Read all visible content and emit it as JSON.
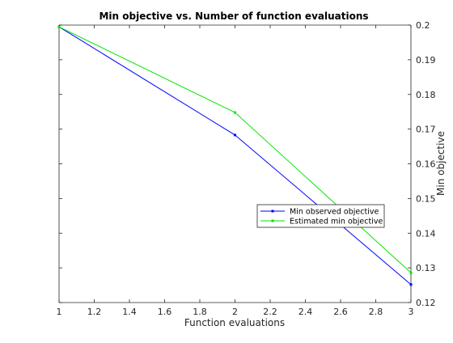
{
  "chart_data": {
    "type": "line",
    "title": "Min objective vs. Number of function evaluations",
    "xlabel": "Function evaluations",
    "ylabel": "Min objective",
    "xlim": [
      1,
      3
    ],
    "ylim": [
      0.12,
      0.2
    ],
    "x_ticks": [
      "1",
      "1.2",
      "1.4",
      "1.6",
      "1.8",
      "2",
      "2.2",
      "2.4",
      "2.6",
      "2.8",
      "3"
    ],
    "y_ticks": [
      "0.12",
      "0.13",
      "0.14",
      "0.15",
      "0.16",
      "0.17",
      "0.18",
      "0.19",
      "0.2"
    ],
    "y_axis_location": "right",
    "grid": false,
    "legend_location": "east",
    "series": [
      {
        "name": "Min observed objective",
        "color": "#0000ff",
        "marker": "point",
        "x": [
          1,
          2,
          3
        ],
        "y": [
          0.1995,
          0.1683,
          0.1252
        ]
      },
      {
        "name": "Estimated min objective",
        "color": "#00e600",
        "marker": "point",
        "x": [
          1,
          2,
          3
        ],
        "y": [
          0.1995,
          0.1748,
          0.1286
        ]
      }
    ]
  }
}
